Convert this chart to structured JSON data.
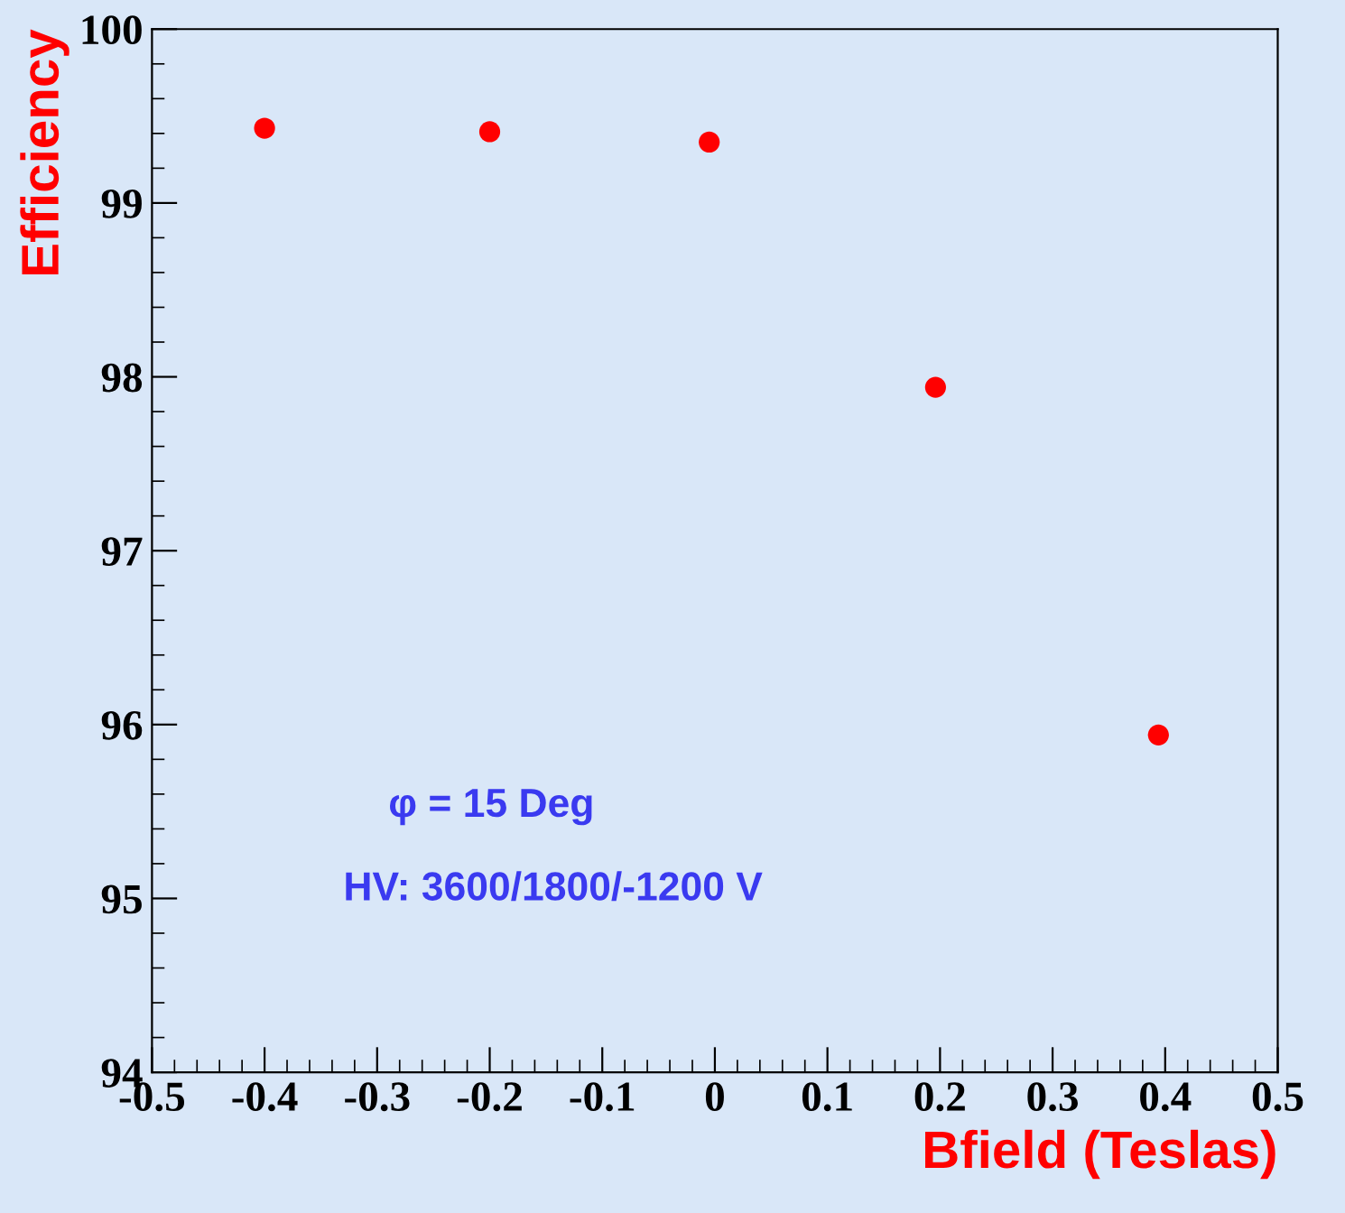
{
  "chart_data": {
    "type": "scatter",
    "xlabel": "Bfield (Teslas)",
    "ylabel": "Efficiency",
    "x": [
      -0.4,
      -0.2,
      -0.005,
      0.196,
      0.394
    ],
    "series": [
      {
        "color": "#ff0000",
        "values": [
          99.43,
          99.41,
          99.35,
          97.94,
          95.94
        ]
      }
    ],
    "xlim": [
      -0.5,
      0.5
    ],
    "xticks": [
      -0.5,
      -0.4,
      -0.3,
      -0.2,
      -0.1,
      0,
      0.1,
      0.2,
      0.3,
      0.4,
      0.5
    ],
    "ylim": [
      94,
      100
    ],
    "yticks": [
      94,
      95,
      96,
      97,
      98,
      99,
      100
    ],
    "marker": "circle",
    "grid": false,
    "legend": false,
    "annotations": [
      "φ = 15 Deg",
      "HV: 3600/1800/-1200 V"
    ]
  }
}
